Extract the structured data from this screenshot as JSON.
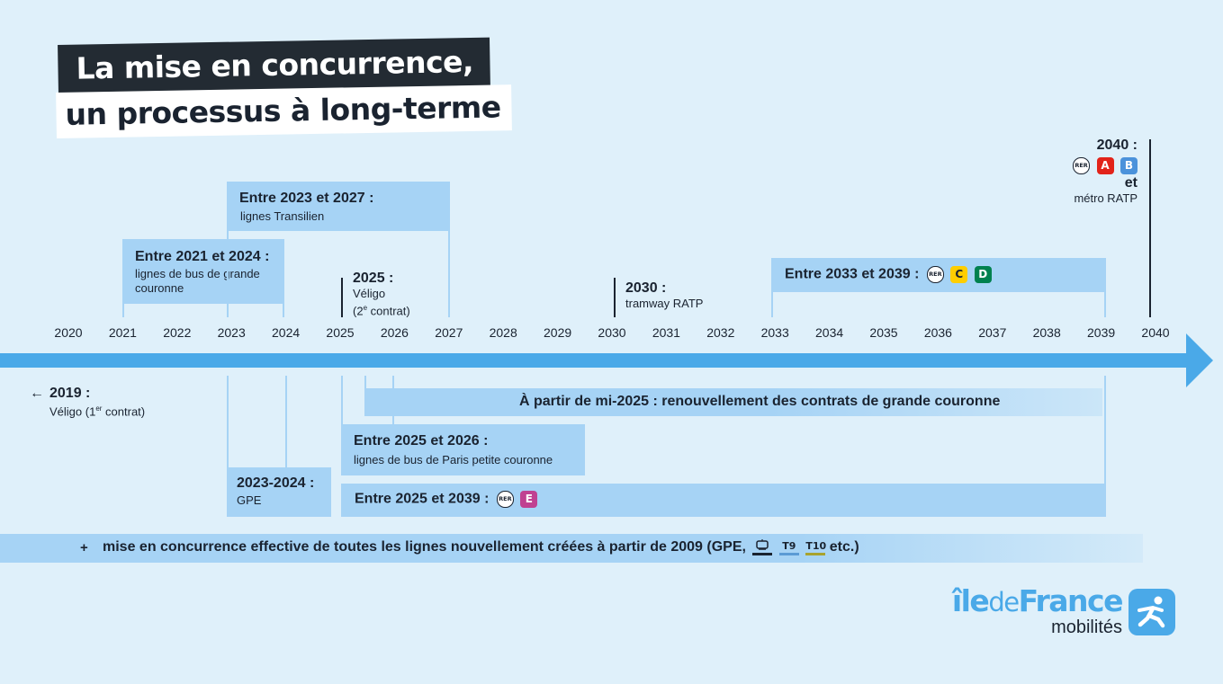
{
  "title": {
    "line1": "La mise en concurrence,",
    "line2": "un processus à long-terme"
  },
  "years": [
    "2020",
    "2021",
    "2022",
    "2023",
    "2024",
    "2025",
    "2026",
    "2027",
    "2028",
    "2029",
    "2030",
    "2031",
    "2032",
    "2033",
    "2034",
    "2035",
    "2036",
    "2037",
    "2038",
    "2039",
    "2040"
  ],
  "above": {
    "b2023": {
      "title": "Entre 2023 et 2027 :",
      "sub": "lignes Transilien"
    },
    "b2021": {
      "title": "Entre 2021 et 2024 :",
      "sub1": "lignes de bus de grande",
      "sub2": "couronne"
    },
    "m2025": {
      "title": "2025 :",
      "sub1": "Véligo",
      "sub2_pre": "(2",
      "sub2_sup": "e",
      "sub2_post": " contrat)"
    },
    "m2030": {
      "title": "2030 :",
      "sub": "tramway RATP"
    },
    "b2033": {
      "title": "Entre 2033 et 2039 :",
      "rer": "RER",
      "lines": [
        "C",
        "D"
      ]
    },
    "m2040": {
      "title": "2040 :",
      "rer": "RER",
      "lines": [
        "A",
        "B"
      ],
      "et": "et",
      "sub": "métro RATP"
    }
  },
  "below": {
    "m2019": {
      "arrow": "←",
      "title": "2019 :",
      "sub_pre": "Véligo (1",
      "sub_sup": "er",
      "sub_post": " contrat)"
    },
    "mi2025": {
      "title": "À partir de mi-2025 : renouvellement des contrats de grande couronne"
    },
    "b2025_26": {
      "title": "Entre 2025 et 2026 :",
      "sub": "lignes de bus de Paris petite couronne"
    },
    "gpe": {
      "title": "2023-2024 :",
      "sub": "GPE"
    },
    "b2025_39": {
      "title": "Entre 2025 et 2039 :",
      "rer": "RER",
      "line": "E"
    }
  },
  "footer_band": {
    "plus": "+",
    "text": "mise en concurrence effective de toutes les lignes nouvellement créées à partir de 2009 (GPE,",
    "tram1": "T9",
    "tram2": "T10",
    "end": "etc.)"
  },
  "logo": {
    "part1": "île",
    "part2": "de",
    "part3": "France",
    "sub": "mobilités"
  },
  "colors": {
    "background": "#dff0fa",
    "box": "#a6d3f5",
    "arrow": "#4aa9e8",
    "line_a": "#e2231a",
    "line_b": "#4b92db",
    "line_c": "#ffce00",
    "line_d": "#00814f",
    "line_e": "#c04191",
    "t9": "#5b9bd5",
    "t10": "#a8a32f"
  }
}
